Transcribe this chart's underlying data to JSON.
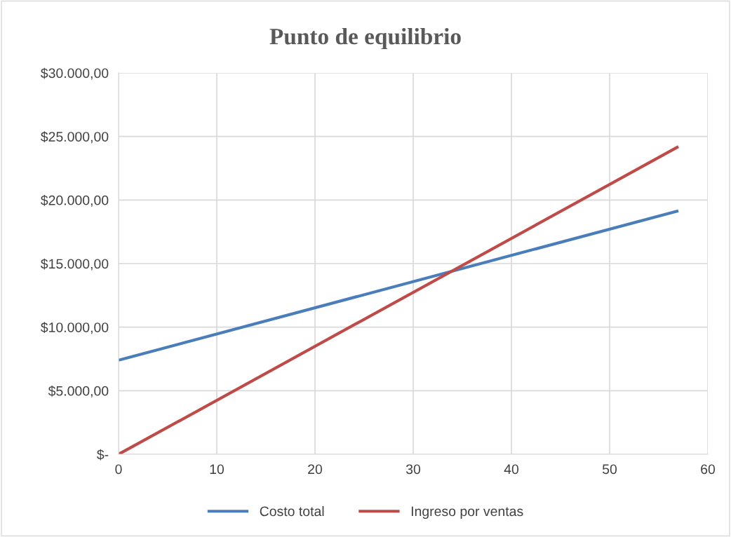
{
  "chart_data": {
    "type": "line",
    "title": "Punto de equilibrio",
    "x": [
      0,
      57
    ],
    "series": [
      {
        "name": "Costo total",
        "color": "#4a7ebb",
        "values": [
          7400,
          19150
        ]
      },
      {
        "name": "Ingreso por ventas",
        "color": "#be4b48",
        "values": [
          0,
          24200
        ]
      }
    ],
    "xlim": [
      0,
      60
    ],
    "xticks": [
      0,
      10,
      20,
      30,
      40,
      50,
      60
    ],
    "ylim": [
      0,
      30000
    ],
    "yticks": [
      {
        "value": 0,
        "label": "$-"
      },
      {
        "value": 5000,
        "label": "$5.000,00"
      },
      {
        "value": 10000,
        "label": "$10.000,00"
      },
      {
        "value": 15000,
        "label": "$15.000,00"
      },
      {
        "value": 20000,
        "label": "$20.000,00"
      },
      {
        "value": 25000,
        "label": "$25.000,00"
      },
      {
        "value": 30000,
        "label": "$30.000,00"
      }
    ],
    "grid": true,
    "legend": "bottom",
    "marker": "none",
    "line_style": "solid"
  }
}
